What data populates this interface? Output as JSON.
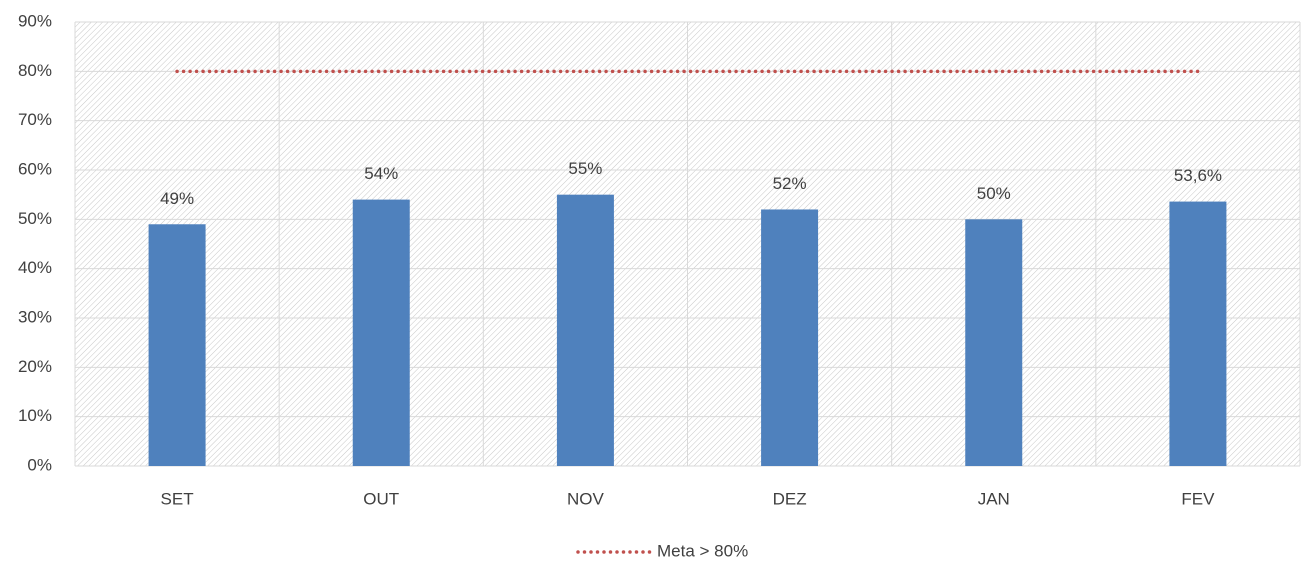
{
  "chart_data": {
    "type": "bar",
    "categories": [
      "SET",
      "OUT",
      "NOV",
      "DEZ",
      "JAN",
      "FEV"
    ],
    "series": [
      {
        "type": "bar",
        "color": "#4f81bd",
        "values": [
          49,
          54,
          55,
          52,
          50,
          53.6
        ],
        "value_labels": [
          "49%",
          "54%",
          "55%",
          "52%",
          "50%",
          "53,6%"
        ]
      },
      {
        "type": "line",
        "name": "Meta > 80%",
        "color": "#c0504d",
        "values": [
          80,
          80,
          80,
          80,
          80,
          80
        ]
      }
    ],
    "ylim": [
      0,
      90
    ],
    "yticks": [
      {
        "value": 0,
        "label": "0%"
      },
      {
        "value": 10,
        "label": "10%"
      },
      {
        "value": 20,
        "label": "20%"
      },
      {
        "value": 30,
        "label": "30%"
      },
      {
        "value": 40,
        "label": "40%"
      },
      {
        "value": 50,
        "label": "50%"
      },
      {
        "value": 60,
        "label": "60%"
      },
      {
        "value": 70,
        "label": "70%"
      },
      {
        "value": 80,
        "label": "80%"
      },
      {
        "value": 90,
        "label": "90%"
      }
    ],
    "grid": true,
    "legend": "bottom"
  }
}
